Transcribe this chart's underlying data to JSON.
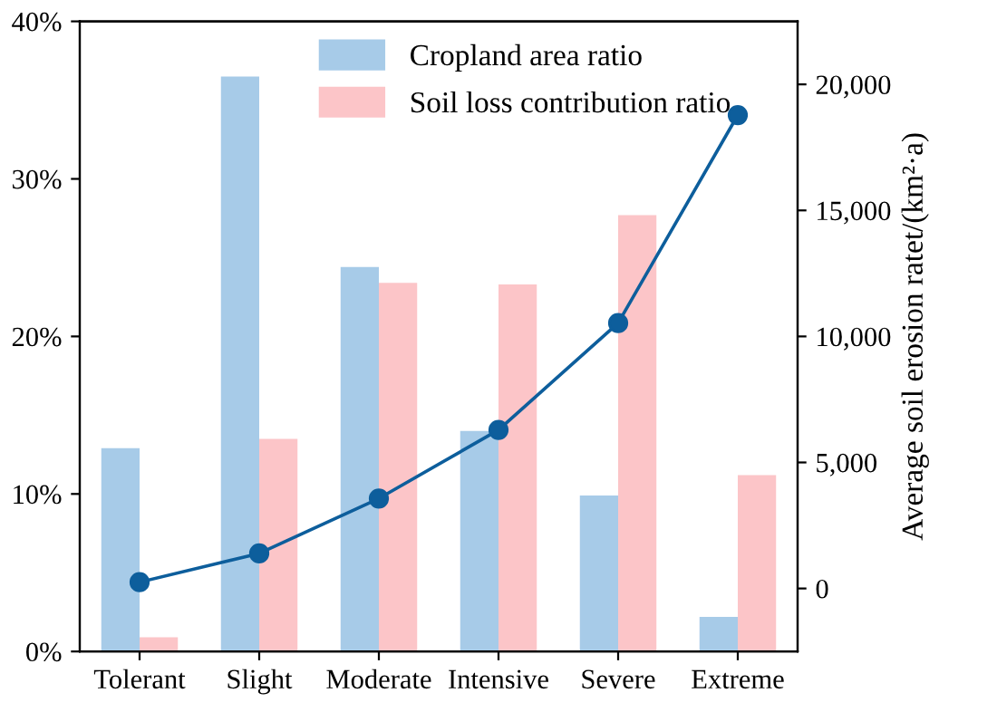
{
  "chart_data": {
    "type": "bar",
    "categories": [
      "Tolerant",
      "Slight",
      "Moderate",
      "Intensive",
      "Severe",
      "Extreme"
    ],
    "series": [
      {
        "name": "Cropland area ratio",
        "color": "#a7cbe8",
        "values": [
          12.9,
          36.5,
          24.4,
          14.0,
          9.9,
          2.2
        ]
      },
      {
        "name": "Soil loss contribution ratio",
        "color": "#fcc5c8",
        "values": [
          0.9,
          13.5,
          23.4,
          23.3,
          27.7,
          11.2
        ]
      },
      {
        "type": "line",
        "axis": "y2",
        "color": "#0d5e9c",
        "marker": "circle",
        "line_style": "solid",
        "values": [
          250,
          1390,
          3570,
          6290,
          10530,
          18780
        ]
      }
    ],
    "ylim": [
      0,
      40
    ],
    "yticks": [
      {
        "value": 0,
        "label": "0%"
      },
      {
        "value": 10,
        "label": "10%"
      },
      {
        "value": 20,
        "label": "20%"
      },
      {
        "value": 30,
        "label": "30%"
      },
      {
        "value": 40,
        "label": "40%"
      }
    ],
    "y2label": "Average soil erosion ratet/(km²·a)",
    "y2lim": [
      -2500,
      22500
    ],
    "y2ticks": [
      0,
      {
        "value": 5000,
        "label": "5,000"
      },
      {
        "value": 10000,
        "label": "10,000"
      },
      {
        "value": 15000,
        "label": "15,000"
      },
      {
        "value": 20000,
        "label": "20,000"
      }
    ],
    "legend": "top",
    "grid": false
  }
}
